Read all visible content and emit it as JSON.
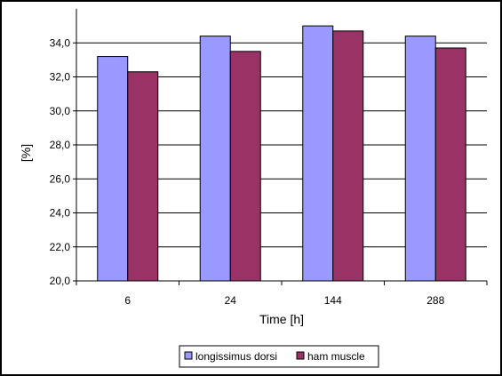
{
  "chart_data": {
    "type": "bar",
    "title": "",
    "xlabel": "Time [h]",
    "ylabel": "[%]",
    "categories": [
      "6",
      "24",
      "144",
      "288"
    ],
    "ylim": [
      20,
      36
    ],
    "yticks": [
      "20,0",
      "22,0",
      "24,0",
      "26,0",
      "28,0",
      "30,0",
      "32,0",
      "34,0"
    ],
    "ytick_values": [
      20,
      22,
      24,
      26,
      28,
      30,
      32,
      34
    ],
    "grid": true,
    "legend_position": "bottom",
    "series": [
      {
        "name": "longissimus dorsi",
        "color": "#9999ff",
        "values": [
          33.2,
          34.4,
          35.0,
          34.4
        ]
      },
      {
        "name": "ham muscle",
        "color": "#993366",
        "values": [
          32.3,
          33.5,
          34.7,
          33.7
        ]
      }
    ]
  }
}
